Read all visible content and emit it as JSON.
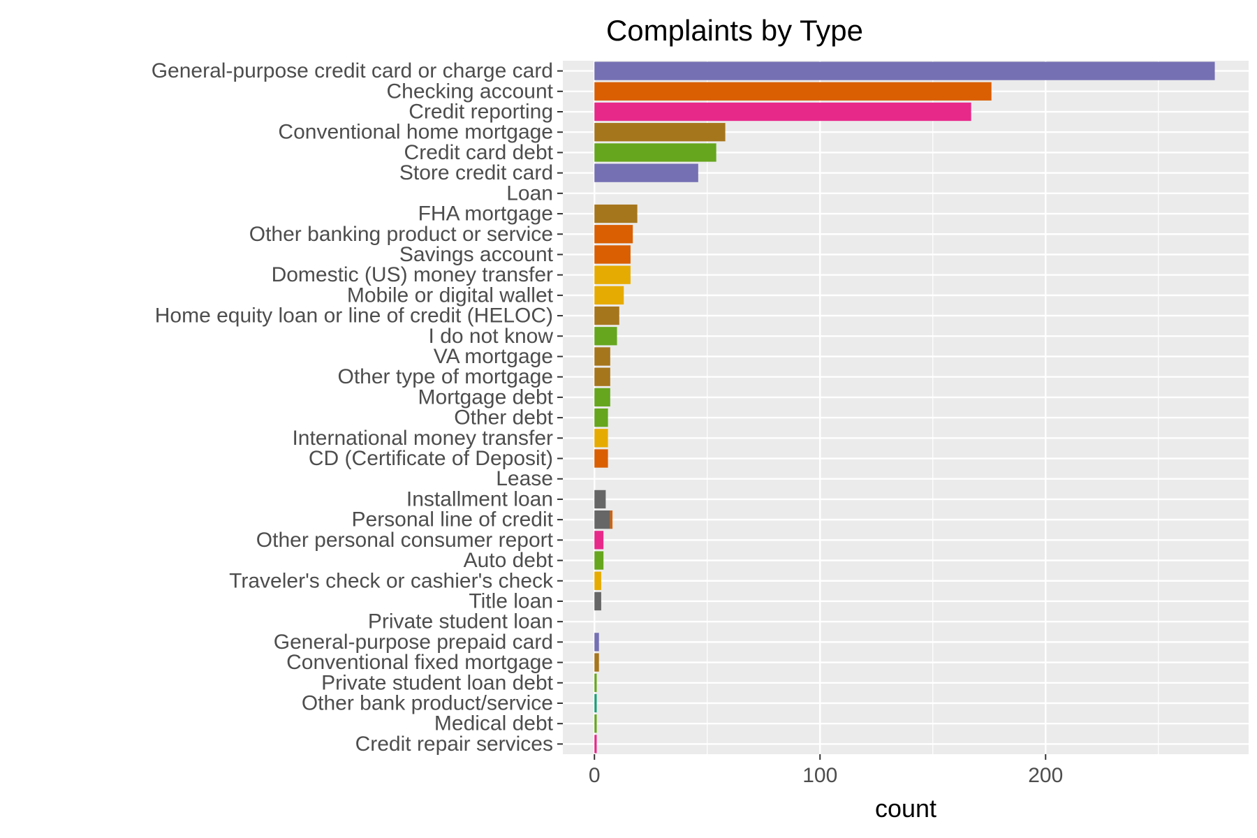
{
  "chart_data": {
    "type": "bar",
    "orientation": "horizontal",
    "stacked": true,
    "title": "Complaints by Type",
    "xlabel": "count",
    "ylabel": "",
    "xlim": [
      -14,
      290
    ],
    "x_ticks": [
      0,
      100,
      200
    ],
    "grid": true,
    "legend": "none",
    "panel_background": "#ebebeb",
    "categories": [
      "General-purpose credit card or charge card",
      "Checking account",
      "Credit reporting",
      "Conventional home mortgage",
      "Credit card debt",
      "Store credit card",
      "Loan",
      "FHA mortgage",
      "Other banking product or service",
      "Savings account",
      "Domestic (US) money transfer",
      "Mobile or digital wallet",
      "Home equity loan or line of credit (HELOC)",
      "I do not know",
      "VA mortgage",
      "Other type of mortgage",
      "Mortgage debt",
      "Other debt",
      "International money transfer",
      "CD (Certificate of Deposit)",
      "Lease",
      "Installment loan",
      "Personal line of credit",
      "Other personal consumer report",
      "Auto debt",
      "Traveler's check or cashier's check",
      "Title loan",
      "Private student loan",
      "General-purpose prepaid card",
      "Conventional fixed mortgage",
      "Private student loan debt",
      "Other bank product/service",
      "Medical debt",
      "Credit repair services"
    ],
    "bars": [
      [
        {
          "value": 275,
          "color": "#7570b3"
        }
      ],
      [
        {
          "value": 176,
          "color": "#d95f02"
        }
      ],
      [
        {
          "value": 167,
          "color": "#e7298a"
        }
      ],
      [
        {
          "value": 58,
          "color": "#a6761d"
        }
      ],
      [
        {
          "value": 54,
          "color": "#66a61e"
        }
      ],
      [
        {
          "value": 46,
          "color": "#7570b3"
        }
      ],
      [],
      [
        {
          "value": 19,
          "color": "#a6761d"
        }
      ],
      [
        {
          "value": 17,
          "color": "#d95f02"
        }
      ],
      [
        {
          "value": 16,
          "color": "#d95f02"
        }
      ],
      [
        {
          "value": 16,
          "color": "#e6ab02"
        }
      ],
      [
        {
          "value": 13,
          "color": "#e6ab02"
        }
      ],
      [
        {
          "value": 11,
          "color": "#a6761d"
        }
      ],
      [
        {
          "value": 10,
          "color": "#66a61e"
        }
      ],
      [
        {
          "value": 7,
          "color": "#a6761d"
        }
      ],
      [
        {
          "value": 7,
          "color": "#a6761d"
        }
      ],
      [
        {
          "value": 7,
          "color": "#66a61e"
        }
      ],
      [
        {
          "value": 6,
          "color": "#66a61e"
        }
      ],
      [
        {
          "value": 6,
          "color": "#e6ab02"
        }
      ],
      [
        {
          "value": 6,
          "color": "#d95f02"
        }
      ],
      [],
      [
        {
          "value": 5,
          "color": "#666666"
        }
      ],
      [
        {
          "value": 7,
          "color": "#666666"
        },
        {
          "value": 1,
          "color": "#d95f02"
        }
      ],
      [
        {
          "value": 4,
          "color": "#e7298a"
        }
      ],
      [
        {
          "value": 4,
          "color": "#66a61e"
        }
      ],
      [
        {
          "value": 3,
          "color": "#e6ab02"
        }
      ],
      [
        {
          "value": 3,
          "color": "#666666"
        }
      ],
      [],
      [
        {
          "value": 2,
          "color": "#7570b3"
        }
      ],
      [
        {
          "value": 2,
          "color": "#a6761d"
        }
      ],
      [
        {
          "value": 1,
          "color": "#66a61e"
        }
      ],
      [
        {
          "value": 1,
          "color": "#1b9e77"
        }
      ],
      [
        {
          "value": 1,
          "color": "#66a61e"
        }
      ],
      [
        {
          "value": 1,
          "color": "#e7298a"
        }
      ]
    ]
  }
}
